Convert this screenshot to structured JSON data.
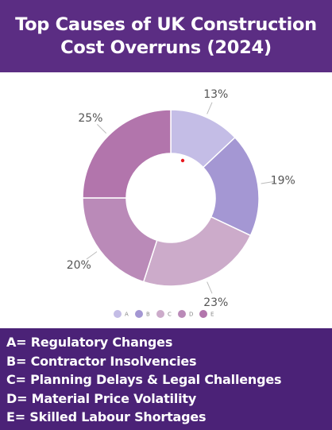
{
  "header": {
    "title": "Top Causes of UK Construction Cost Overruns (2024)"
  },
  "colors": {
    "header_bg": "#5b2d83",
    "legend_bg": "#4b2277",
    "slices": [
      "#c4bde6",
      "#a497d3",
      "#ccabca",
      "#ba8ab8",
      "#b275ac"
    ],
    "marker": "#e8191f"
  },
  "chart_data": {
    "type": "pie",
    "donut": true,
    "title": "Top Causes of UK Construction Cost Overruns (2024)",
    "categories": [
      "A",
      "B",
      "C",
      "D",
      "E"
    ],
    "values": [
      13,
      19,
      23,
      20,
      25
    ],
    "value_labels": [
      "13%",
      "19%",
      "23%",
      "20%",
      "25%"
    ],
    "legend_placement": "bottom"
  },
  "key": {
    "items": [
      "A= Regulatory Changes",
      "B= Contractor Insolvencies",
      "C= Planning Delays & Legal Challenges",
      "D= Material Price Volatility",
      "E= Skilled Labour Shortages"
    ]
  }
}
